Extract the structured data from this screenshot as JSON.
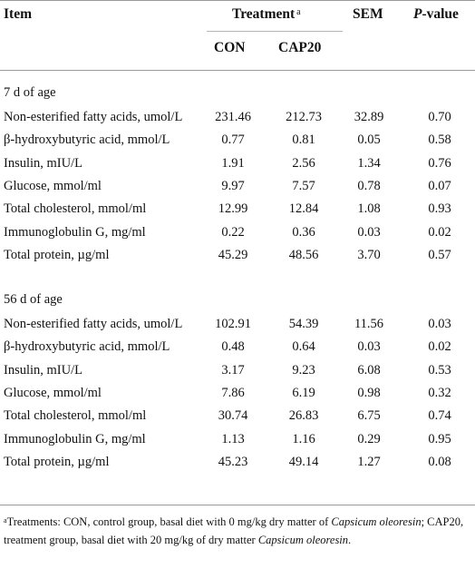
{
  "header": {
    "item": "Item",
    "treatment": "Treatment",
    "treatment_sup": "a",
    "sem": "SEM",
    "pvalue_prefix": "P",
    "pvalue_suffix": "-value",
    "con": "CON",
    "cap20": "CAP20"
  },
  "sections": [
    {
      "title": "7 d of age",
      "rows": [
        {
          "item": "Non-esterified fatty acids, umol/L",
          "con": "231.46",
          "cap20": "212.73",
          "sem": "32.89",
          "p": "0.70"
        },
        {
          "item": "β-hydroxybutyric acid, mmol/L",
          "con": "0.77",
          "cap20": "0.81",
          "sem": "0.05",
          "p": "0.58"
        },
        {
          "item": "Insulin, mIU/L",
          "con": "1.91",
          "cap20": "2.56",
          "sem": "1.34",
          "p": "0.76"
        },
        {
          "item": "Glucose, mmol/ml",
          "con": "9.97",
          "cap20": "7.57",
          "sem": "0.78",
          "p": "0.07"
        },
        {
          "item": "Total cholesterol, mmol/ml",
          "con": "12.99",
          "cap20": "12.84",
          "sem": "1.08",
          "p": "0.93"
        },
        {
          "item": "Immunoglobulin G, mg/ml",
          "con": "0.22",
          "cap20": "0.36",
          "sem": "0.03",
          "p": "0.02"
        },
        {
          "item": "Total protein, µg/ml",
          "con": "45.29",
          "cap20": "48.56",
          "sem": "3.70",
          "p": "0.57"
        }
      ]
    },
    {
      "title": "56 d of age",
      "rows": [
        {
          "item": "Non-esterified fatty acids, umol/L",
          "con": "102.91",
          "cap20": "54.39",
          "sem": "11.56",
          "p": "0.03"
        },
        {
          "item": "β-hydroxybutyric acid, mmol/L",
          "con": "0.48",
          "cap20": "0.64",
          "sem": "0.03",
          "p": "0.02"
        },
        {
          "item": "Insulin, mIU/L",
          "con": "3.17",
          "cap20": "9.23",
          "sem": "6.08",
          "p": "0.53"
        },
        {
          "item": "Glucose, mmol/ml",
          "con": "7.86",
          "cap20": "6.19",
          "sem": "0.98",
          "p": "0.32"
        },
        {
          "item": "Total cholesterol, mmol/ml",
          "con": "30.74",
          "cap20": "26.83",
          "sem": "6.75",
          "p": "0.74"
        },
        {
          "item": "Immunoglobulin G, mg/ml",
          "con": "1.13",
          "cap20": "1.16",
          "sem": "0.29",
          "p": "0.95"
        },
        {
          "item": "Total protein, µg/ml",
          "con": "45.23",
          "cap20": "49.14",
          "sem": "1.27",
          "p": "0.08"
        }
      ]
    }
  ],
  "footnote": {
    "marker": "a",
    "text_1": "Treatments: CON, control group, basal diet with 0 mg/kg dry matter of ",
    "italic_1": "Capsicum oleoresin",
    "text_2": "; CAP20, treatment group, basal diet with 20 mg/kg of dry matter ",
    "italic_2": "Capsicum oleoresin",
    "text_3": "."
  }
}
